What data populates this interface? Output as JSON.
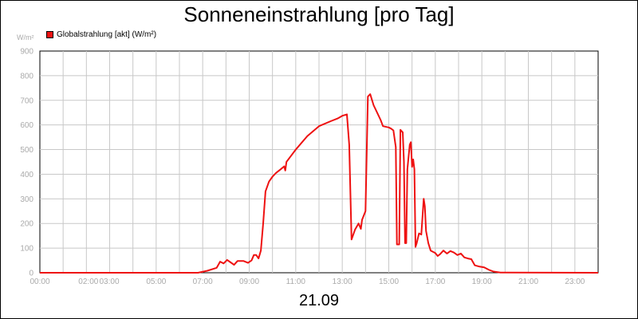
{
  "chart_data": {
    "type": "line",
    "title": "Sonneneinstrahlung [pro Tag]",
    "date": "21.09",
    "y_unit": "W/m²",
    "ylim": [
      0,
      900
    ],
    "xlim_hours": [
      0,
      24
    ],
    "grid": true,
    "legend_position": "top-left",
    "y_ticks": [
      "0",
      "100",
      "200",
      "300",
      "400",
      "500",
      "600",
      "700",
      "800",
      "900"
    ],
    "x_ticks": [
      {
        "h": 0,
        "label": "00:00"
      },
      {
        "h": 2,
        "label": "02:00"
      },
      {
        "h": 3,
        "label": "03:00"
      },
      {
        "h": 5,
        "label": "05:00"
      },
      {
        "h": 7,
        "label": "07:00"
      },
      {
        "h": 9,
        "label": "09:00"
      },
      {
        "h": 11,
        "label": "11:00"
      },
      {
        "h": 13,
        "label": "13:00"
      },
      {
        "h": 15,
        "label": "15:00"
      },
      {
        "h": 17,
        "label": "17:00"
      },
      {
        "h": 19,
        "label": "19:00"
      },
      {
        "h": 21,
        "label": "21:00"
      },
      {
        "h": 23,
        "label": "23:00"
      }
    ],
    "series": [
      {
        "name": "Globalstrahlung [akt] (W/m²)",
        "color": "#ee1111",
        "points": [
          [
            0.0,
            0
          ],
          [
            6.8,
            0
          ],
          [
            7.2,
            8
          ],
          [
            7.6,
            20
          ],
          [
            7.75,
            45
          ],
          [
            7.9,
            38
          ],
          [
            8.05,
            52
          ],
          [
            8.2,
            42
          ],
          [
            8.35,
            32
          ],
          [
            8.5,
            48
          ],
          [
            8.75,
            48
          ],
          [
            8.95,
            40
          ],
          [
            9.1,
            50
          ],
          [
            9.2,
            72
          ],
          [
            9.3,
            72
          ],
          [
            9.4,
            58
          ],
          [
            9.5,
            90
          ],
          [
            9.6,
            200
          ],
          [
            9.7,
            330
          ],
          [
            9.85,
            370
          ],
          [
            10.0,
            390
          ],
          [
            10.15,
            405
          ],
          [
            10.35,
            420
          ],
          [
            10.5,
            432
          ],
          [
            10.55,
            415
          ],
          [
            10.6,
            450
          ],
          [
            10.8,
            475
          ],
          [
            11.0,
            500
          ],
          [
            11.5,
            555
          ],
          [
            12.0,
            595
          ],
          [
            12.5,
            615
          ],
          [
            12.8,
            626
          ],
          [
            13.0,
            637
          ],
          [
            13.2,
            643
          ],
          [
            13.3,
            520
          ],
          [
            13.4,
            135
          ],
          [
            13.55,
            175
          ],
          [
            13.7,
            200
          ],
          [
            13.8,
            178
          ],
          [
            13.85,
            215
          ],
          [
            14.0,
            250
          ],
          [
            14.1,
            715
          ],
          [
            14.2,
            725
          ],
          [
            14.35,
            680
          ],
          [
            14.5,
            650
          ],
          [
            14.65,
            620
          ],
          [
            14.75,
            595
          ],
          [
            15.0,
            590
          ],
          [
            15.1,
            585
          ],
          [
            15.2,
            578
          ],
          [
            15.3,
            510
          ],
          [
            15.35,
            115
          ],
          [
            15.45,
            115
          ],
          [
            15.5,
            580
          ],
          [
            15.6,
            570
          ],
          [
            15.65,
            450
          ],
          [
            15.7,
            120
          ],
          [
            15.75,
            120
          ],
          [
            15.8,
            420
          ],
          [
            15.9,
            520
          ],
          [
            15.95,
            530
          ],
          [
            16.0,
            430
          ],
          [
            16.05,
            460
          ],
          [
            16.1,
            420
          ],
          [
            16.15,
            105
          ],
          [
            16.2,
            120
          ],
          [
            16.3,
            160
          ],
          [
            16.4,
            155
          ],
          [
            16.5,
            300
          ],
          [
            16.55,
            270
          ],
          [
            16.6,
            170
          ],
          [
            16.7,
            120
          ],
          [
            16.8,
            90
          ],
          [
            17.0,
            80
          ],
          [
            17.1,
            68
          ],
          [
            17.2,
            75
          ],
          [
            17.35,
            90
          ],
          [
            17.5,
            78
          ],
          [
            17.65,
            88
          ],
          [
            17.8,
            82
          ],
          [
            17.95,
            72
          ],
          [
            18.1,
            78
          ],
          [
            18.25,
            62
          ],
          [
            18.4,
            58
          ],
          [
            18.55,
            55
          ],
          [
            18.7,
            30
          ],
          [
            18.9,
            25
          ],
          [
            19.1,
            22
          ],
          [
            19.3,
            12
          ],
          [
            19.5,
            5
          ],
          [
            19.8,
            1
          ],
          [
            24.0,
            0
          ]
        ]
      }
    ]
  }
}
